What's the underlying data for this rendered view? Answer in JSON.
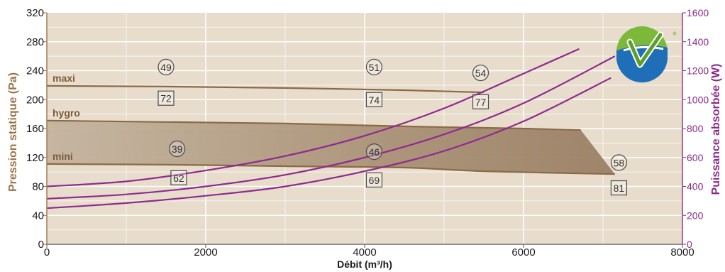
{
  "chart_data": {
    "type": "line",
    "xlabel": "Débit (m³/h)",
    "ylabel_left": "Pression statique (Pa)",
    "ylabel_right": "Puissance absorbée (W)",
    "xlim": [
      0,
      8000
    ],
    "ylim_left": [
      0,
      320
    ],
    "ylim_right": [
      0,
      1600
    ],
    "x_ticks": [
      "0",
      "2000",
      "4000",
      "6000",
      "8000"
    ],
    "y_ticks_left": [
      "0",
      "40",
      "80",
      "120",
      "160",
      "200",
      "240",
      "280",
      "320"
    ],
    "y_ticks_right": [
      "0",
      "200",
      "400",
      "600",
      "800",
      "1000",
      "1200",
      "1400",
      "1600"
    ],
    "grid": true,
    "fan_curves": [
      {
        "name": "maxi",
        "x": [
          0,
          1500,
          3000,
          4500,
          5500
        ],
        "y": [
          219,
          218,
          216,
          213,
          210
        ]
      },
      {
        "name": "hygro",
        "x": [
          0,
          1500,
          3000,
          4500,
          6000,
          6720
        ],
        "y": [
          171,
          169,
          167,
          163,
          160,
          158
        ]
      },
      {
        "name": "mini",
        "x": [
          0,
          1500,
          3000,
          4500,
          5500,
          7150
        ],
        "y": [
          111,
          110,
          108,
          106,
          101,
          97
        ]
      }
    ],
    "system_curves": [
      {
        "x": [
          0,
          1000,
          2000,
          3000,
          4000,
          5000,
          6000,
          6700
        ],
        "y": [
          80,
          87,
          102,
          122,
          150,
          188,
          236,
          270
        ]
      },
      {
        "x": [
          0,
          1000,
          2000,
          3000,
          4000,
          5000,
          6000,
          7150
        ],
        "y": [
          63,
          69,
          80,
          96,
          120,
          152,
          195,
          260
        ]
      },
      {
        "x": [
          0,
          1000,
          2000,
          3000,
          4000,
          5000,
          6000,
          7100
        ],
        "y": [
          50,
          57,
          67,
          80,
          101,
          129,
          170,
          230
        ]
      }
    ],
    "acoustic_markers": [
      {
        "text": "49",
        "shape": "circle",
        "x": 1500,
        "y": 245
      },
      {
        "text": "51",
        "shape": "circle",
        "x": 4120,
        "y": 245
      },
      {
        "text": "54",
        "shape": "circle",
        "x": 5460,
        "y": 237
      },
      {
        "text": "39",
        "shape": "circle",
        "x": 1640,
        "y": 132
      },
      {
        "text": "46",
        "shape": "circle",
        "x": 4120,
        "y": 128
      },
      {
        "text": "58",
        "shape": "circle",
        "x": 7200,
        "y": 113
      },
      {
        "text": "72",
        "shape": "square",
        "x": 1500,
        "y": 202
      },
      {
        "text": "74",
        "shape": "square",
        "x": 4120,
        "y": 200
      },
      {
        "text": "77",
        "shape": "square",
        "x": 5460,
        "y": 197
      },
      {
        "text": "62",
        "shape": "square",
        "x": 1660,
        "y": 92
      },
      {
        "text": "69",
        "shape": "square",
        "x": 4120,
        "y": 89
      },
      {
        "text": "81",
        "shape": "square",
        "x": 7200,
        "y": 78
      }
    ],
    "badge": {
      "asterisk": "*",
      "icon": "checkmark-badge-icon"
    },
    "colors": {
      "plot_bg": "#e8ddcc",
      "grid": "#ffffff",
      "fan_curve": "#8c6a45",
      "hygro_band": "#b29f87",
      "system_curve": "#8f2a8f",
      "left_axis": "#9b7448",
      "right_axis": "#8a2a8a",
      "badge_blue": "#1e6fb8",
      "badge_green": "#7cb83a"
    }
  }
}
